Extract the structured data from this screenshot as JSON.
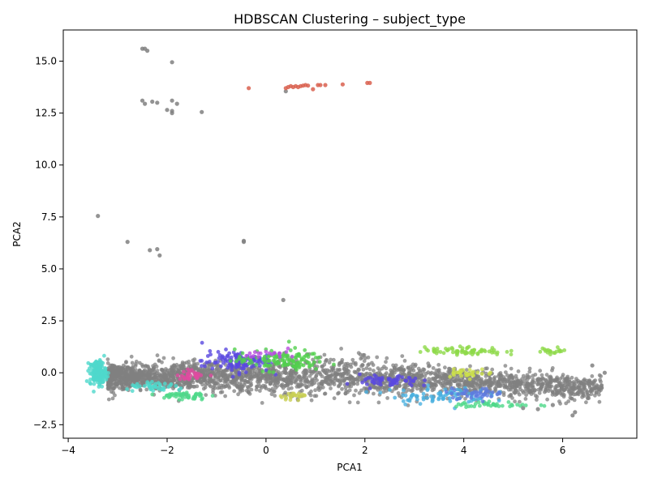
{
  "chart_data": {
    "type": "scatter",
    "title": "HDBSCAN Clustering – subject_type",
    "xlabel": "PCA1",
    "ylabel": "PCA2",
    "xlim": [
      -4.1,
      7.5
    ],
    "ylim": [
      -3.15,
      16.5
    ],
    "xticks": [
      -4,
      -2,
      0,
      2,
      4,
      6
    ],
    "yticks": [
      -2.5,
      0.0,
      2.5,
      5.0,
      7.5,
      10.0,
      12.5,
      15.0
    ],
    "ytick_labels": [
      "−2.5",
      "0.0",
      "2.5",
      "5.0",
      "7.5",
      "10.0",
      "12.5",
      "15.0"
    ],
    "xtick_labels": [
      "−4",
      "−2",
      "0",
      "2",
      "4",
      "6"
    ],
    "grid": false,
    "legend": "none",
    "noise_color": "#808080",
    "series": [
      {
        "color": "#808080",
        "points": [
          [
            -2.5,
            15.6
          ],
          [
            -2.45,
            15.6
          ],
          [
            -1.9,
            14.95
          ],
          [
            -2.5,
            13.1
          ],
          [
            -2.45,
            12.95
          ],
          [
            -2.3,
            13.05
          ],
          [
            -2.2,
            13.0
          ],
          [
            -1.9,
            13.1
          ],
          [
            -1.8,
            12.95
          ],
          [
            -2.0,
            12.65
          ],
          [
            -1.9,
            12.5
          ],
          [
            -1.9,
            12.6
          ],
          [
            -1.3,
            12.55
          ],
          [
            -3.4,
            7.55
          ],
          [
            -2.8,
            6.3
          ],
          [
            -2.35,
            5.9
          ],
          [
            -2.2,
            5.95
          ],
          [
            -2.15,
            5.65
          ],
          [
            -0.45,
            6.35
          ],
          [
            -0.45,
            6.3
          ],
          [
            0.35,
            3.5
          ],
          [
            0.4,
            13.55
          ],
          [
            -2.4,
            15.5
          ],
          [
            6.2,
            -2.05
          ],
          [
            6.25,
            -1.9
          ],
          [
            6.85,
            0.0
          ],
          [
            6.6,
            0.35
          ],
          [
            5.8,
            -1.55
          ],
          [
            5.5,
            -1.75
          ],
          [
            5.2,
            -1.7
          ]
        ]
      },
      {
        "color": "#d9604f",
        "points": [
          [
            -0.35,
            13.7
          ],
          [
            0.4,
            13.7
          ],
          [
            0.45,
            13.75
          ],
          [
            0.5,
            13.8
          ],
          [
            0.55,
            13.75
          ],
          [
            0.6,
            13.8
          ],
          [
            0.65,
            13.75
          ],
          [
            0.7,
            13.8
          ],
          [
            0.75,
            13.82
          ],
          [
            0.8,
            13.85
          ],
          [
            0.85,
            13.82
          ],
          [
            0.95,
            13.65
          ],
          [
            1.05,
            13.85
          ],
          [
            1.1,
            13.85
          ],
          [
            1.2,
            13.85
          ],
          [
            1.55,
            13.88
          ],
          [
            2.05,
            13.95
          ],
          [
            2.1,
            13.95
          ]
        ]
      }
    ],
    "dense_band": {
      "x_range": [
        -3.6,
        6.9
      ],
      "y_range": [
        -2.1,
        1.5
      ],
      "cluster_colors": [
        "#4fd8cc",
        "#5a48e0",
        "#52cf4e",
        "#8fd94a",
        "#cce04a",
        "#e04aa0",
        "#4ab0e0",
        "#4fd88a",
        "#5e7ae0",
        "#c9cf55",
        "#b84fe0"
      ]
    }
  }
}
